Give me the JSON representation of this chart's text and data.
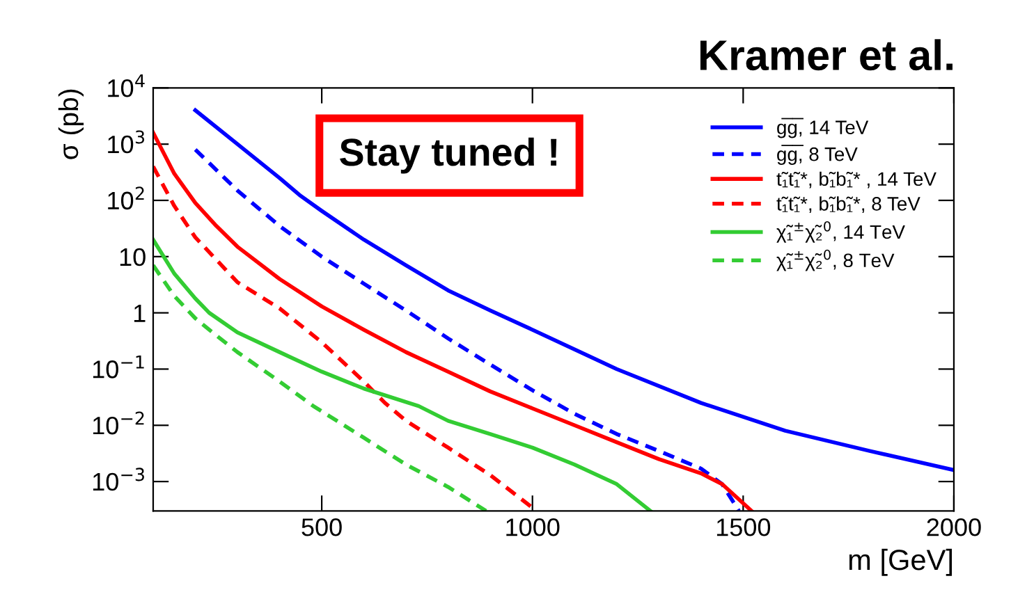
{
  "chart_data": {
    "type": "line",
    "xlabel": "m [GeV]",
    "ylabel": "σ (pb)",
    "annotations": [
      "Kramer et al.",
      "Stay tuned !"
    ],
    "log": "y",
    "xlim": [
      100,
      2000
    ],
    "xticks": [
      500,
      1000,
      1500,
      2000
    ],
    "ylim": [
      0.0003,
      10000
    ],
    "yticks": [
      {
        "value": 0.001,
        "label": "10$^{−3}$"
      },
      {
        "value": 0.01,
        "label": "10$^{−2}$"
      },
      {
        "value": 0.1,
        "label": "10$^{−1}$"
      },
      1,
      10,
      {
        "value": 100,
        "label": "10$^{2}$"
      },
      {
        "value": 1000,
        "label": "10$^{3}$"
      },
      {
        "value": 10000,
        "label": "10$^{4}$"
      }
    ],
    "grid": false,
    "legend": "top right",
    "series": [
      {
        "name": "g̅g̅, 14 TeV",
        "color": "#0000ff",
        "line_style": "solid",
        "x": [
          200,
          300,
          400,
          450,
          500,
          600,
          700,
          800,
          900,
          1000,
          1200,
          1400,
          1600,
          1800,
          2000
        ],
        "values": [
          4000,
          1000,
          250,
          120,
          65,
          20,
          7,
          2.5,
          1.1,
          0.5,
          0.1,
          0.025,
          0.008,
          0.0035,
          0.0016
        ]
      },
      {
        "name": "g̅g̅, 8 TeV",
        "color": "#0000ff",
        "line_style": "dashed",
        "x": [
          200,
          300,
          400,
          500,
          600,
          700,
          800,
          900,
          1000,
          1100,
          1200,
          1300,
          1400,
          1450,
          1490
        ],
        "values": [
          800,
          150,
          35,
          10,
          3.3,
          1.1,
          0.35,
          0.12,
          0.042,
          0.016,
          0.007,
          0.0035,
          0.0017,
          0.0009,
          0.0003
        ]
      },
      {
        "name": "t̃₁t̃₁*, b̃₁b̃₁* , 14 TeV",
        "color": "#ff0000",
        "line_style": "solid",
        "x": [
          100,
          150,
          200,
          250,
          300,
          400,
          500,
          600,
          700,
          800,
          900,
          1000,
          1100,
          1200,
          1300,
          1400,
          1450,
          1520
        ],
        "values": [
          1600,
          300,
          90,
          35,
          15,
          4,
          1.3,
          0.5,
          0.2,
          0.09,
          0.04,
          0.02,
          0.01,
          0.005,
          0.0025,
          0.0014,
          0.0009,
          0.0003
        ]
      },
      {
        "name": "t̃₁t̃₁*, b̃₁b̃₁*, 8 TeV",
        "color": "#ff0000",
        "line_style": "dashed",
        "x": [
          100,
          150,
          200,
          300,
          400,
          500,
          600,
          650,
          700,
          800,
          900,
          1010
        ],
        "values": [
          400,
          80,
          22,
          3.5,
          1.2,
          0.3,
          0.06,
          0.025,
          0.012,
          0.004,
          0.0013,
          0.0003
        ]
      },
      {
        "name": "χ̃₁$^{±}$χ̃₂$^{0}$, 14 TeV",
        "color": "#33cc33",
        "line_style": "solid",
        "x": [
          100,
          150,
          200,
          233,
          300,
          400,
          500,
          600,
          730,
          800,
          900,
          1000,
          1100,
          1200,
          1280
        ],
        "values": [
          20,
          5,
          1.8,
          1,
          0.45,
          0.2,
          0.09,
          0.045,
          0.022,
          0.012,
          0.007,
          0.004,
          0.002,
          0.0009,
          0.0003
        ]
      },
      {
        "name": "χ̃₁$^{±}$χ̃₂$^{0}$, 8 TeV",
        "color": "#33cc33",
        "line_style": "dashed",
        "x": [
          100,
          150,
          200,
          233,
          300,
          400,
          480,
          600,
          700,
          800,
          890
        ],
        "values": [
          7,
          2,
          0.8,
          0.5,
          0.2,
          0.06,
          0.022,
          0.006,
          0.002,
          0.0008,
          0.0003
        ]
      }
    ]
  }
}
